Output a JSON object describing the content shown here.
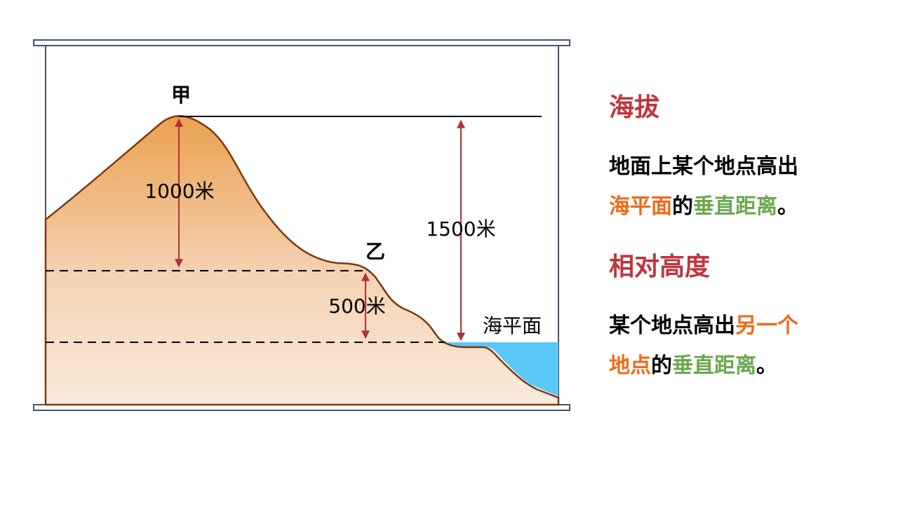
{
  "diagram": {
    "peak_label": "甲",
    "point_label": "乙",
    "peak_height_label": "1000米",
    "sea_height_label": "1500米",
    "relative_label": "500米",
    "sea_level_label": "海平面"
  },
  "terms": [
    {
      "title": "海拔",
      "lines": [
        [
          {
            "text": "地面上某个地点高出",
            "color": "#000000"
          }
        ],
        [
          {
            "text": "海平面",
            "color": "#ee6a1a"
          },
          {
            "text": "的",
            "color": "#000000"
          },
          {
            "text": "垂直距离",
            "color": "#6aa84f"
          },
          {
            "text": "。",
            "color": "#000000"
          }
        ]
      ]
    },
    {
      "title": "相对高度",
      "lines": [
        [
          {
            "text": "某个地点高出",
            "color": "#000000"
          },
          {
            "text": "另一个",
            "color": "#ee6a1a"
          }
        ],
        [
          {
            "text": "地点",
            "color": "#ee6a1a"
          },
          {
            "text": "的",
            "color": "#000000"
          },
          {
            "text": "垂直距离",
            "color": "#6aa84f"
          },
          {
            "text": "。",
            "color": "#000000"
          }
        ]
      ]
    }
  ]
}
